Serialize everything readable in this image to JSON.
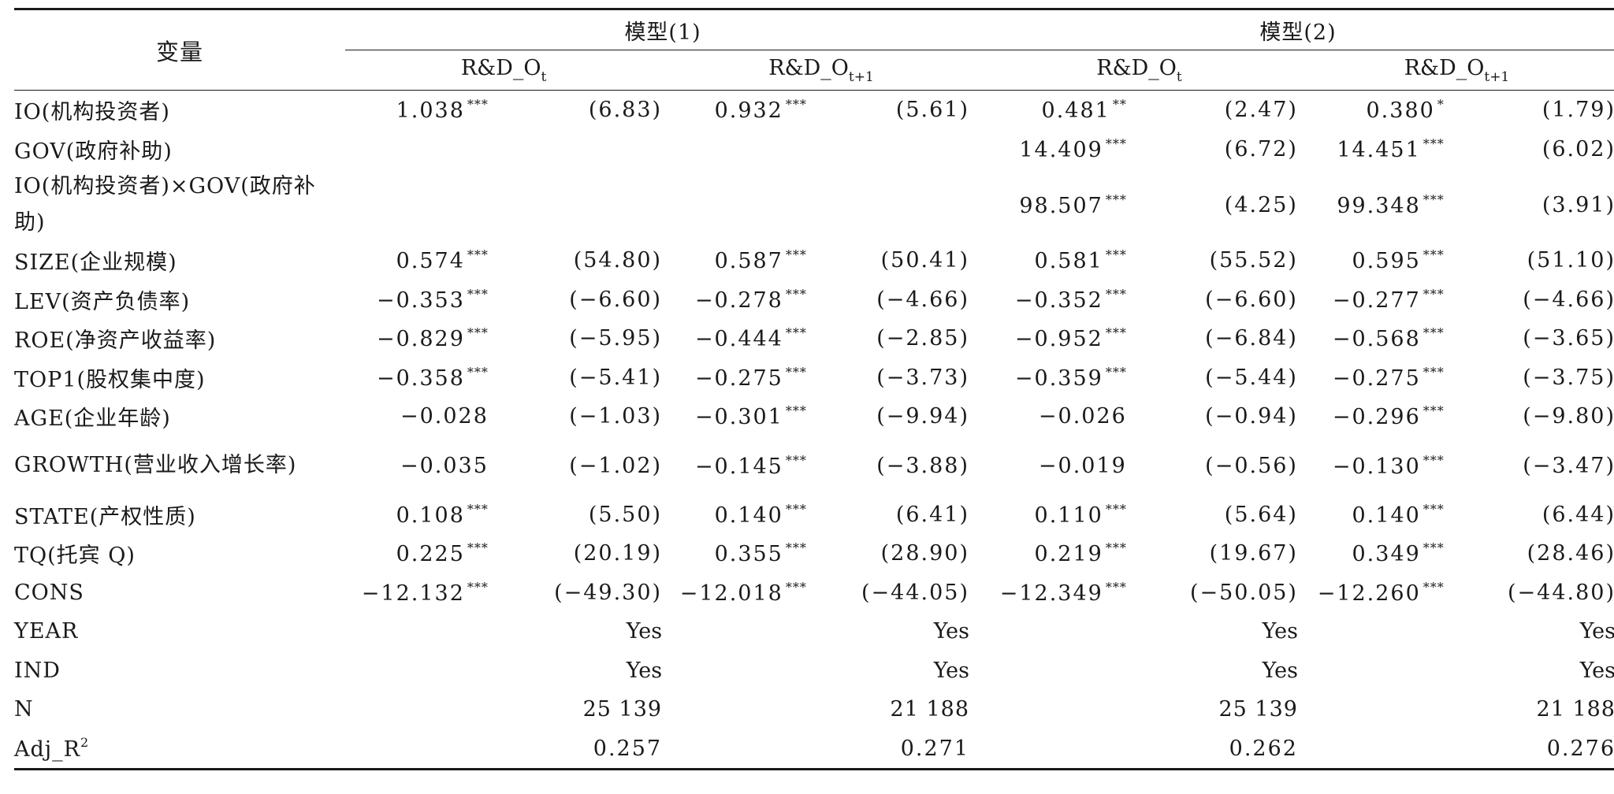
{
  "header": {
    "variable_label": "变量",
    "model1_label": "模型(1)",
    "model2_label": "模型(2)",
    "dep_var_base": "R&D_O",
    "dep_var_sub_t": "t",
    "dep_var_sub_t1": "t+1"
  },
  "rows": [
    {
      "name": "IO(机构投资者)",
      "cells": [
        [
          "1.038",
          "***"
        ],
        [
          "(6.83)",
          ""
        ],
        [
          "0.932",
          "***"
        ],
        [
          "(5.61)",
          ""
        ],
        [
          "0.481",
          "**"
        ],
        [
          "(2.47)",
          ""
        ],
        [
          "0.380",
          "*"
        ],
        [
          "(1.79)",
          ""
        ]
      ]
    },
    {
      "name": "GOV(政府补助)",
      "cells": [
        [
          "",
          ""
        ],
        [
          "",
          ""
        ],
        [
          "",
          ""
        ],
        [
          "",
          ""
        ],
        [
          "14.409",
          "***"
        ],
        [
          "(6.72)",
          ""
        ],
        [
          "14.451",
          "***"
        ],
        [
          "(6.02)",
          ""
        ]
      ]
    },
    {
      "name": "IO(机构投资者)×GOV(政府补助)",
      "cells": [
        [
          "",
          ""
        ],
        [
          "",
          ""
        ],
        [
          "",
          ""
        ],
        [
          "",
          ""
        ],
        [
          "98.507",
          "***"
        ],
        [
          "(4.25)",
          ""
        ],
        [
          "99.348",
          "***"
        ],
        [
          "(3.91)",
          ""
        ]
      ]
    },
    {
      "name": "SIZE(企业规模)",
      "cells": [
        [
          "0.574",
          "***"
        ],
        [
          "(54.80)",
          ""
        ],
        [
          "0.587",
          "***"
        ],
        [
          "(50.41)",
          ""
        ],
        [
          "0.581",
          "***"
        ],
        [
          "(55.52)",
          ""
        ],
        [
          "0.595",
          "***"
        ],
        [
          "(51.10)",
          ""
        ]
      ]
    },
    {
      "name": "LEV(资产负债率)",
      "cells": [
        [
          "−0.353",
          "***"
        ],
        [
          "(−6.60)",
          ""
        ],
        [
          "−0.278",
          "***"
        ],
        [
          "(−4.66)",
          ""
        ],
        [
          "−0.352",
          "***"
        ],
        [
          "(−6.60)",
          ""
        ],
        [
          "−0.277",
          "***"
        ],
        [
          "(−4.66)",
          ""
        ]
      ]
    },
    {
      "name": "ROE(净资产收益率)",
      "cells": [
        [
          "−0.829",
          "***"
        ],
        [
          "(−5.95)",
          ""
        ],
        [
          "−0.444",
          "***"
        ],
        [
          "(−2.85)",
          ""
        ],
        [
          "−0.952",
          "***"
        ],
        [
          "(−6.84)",
          ""
        ],
        [
          "−0.568",
          "***"
        ],
        [
          "(−3.65)",
          ""
        ]
      ]
    },
    {
      "name": "TOP1(股权集中度)",
      "cells": [
        [
          "−0.358",
          "***"
        ],
        [
          "(−5.41)",
          ""
        ],
        [
          "−0.275",
          "***"
        ],
        [
          "(−3.73)",
          ""
        ],
        [
          "−0.359",
          "***"
        ],
        [
          "(−5.44)",
          ""
        ],
        [
          "−0.275",
          "***"
        ],
        [
          "(−3.75)",
          ""
        ]
      ]
    },
    {
      "name": "AGE(企业年龄)",
      "cells": [
        [
          "−0.028",
          ""
        ],
        [
          "(−1.03)",
          ""
        ],
        [
          "−0.301",
          "***"
        ],
        [
          "(−9.94)",
          ""
        ],
        [
          "−0.026",
          ""
        ],
        [
          "(−0.94)",
          ""
        ],
        [
          "−0.296",
          "***"
        ],
        [
          "(−9.80)",
          ""
        ]
      ]
    },
    {
      "name": "GROWTH(营业收入增长率)",
      "cells": [
        [
          "−0.035",
          ""
        ],
        [
          "(−1.02)",
          ""
        ],
        [
          "−0.145",
          "***"
        ],
        [
          "(−3.88)",
          ""
        ],
        [
          "−0.019",
          ""
        ],
        [
          "(−0.56)",
          ""
        ],
        [
          "−0.130",
          "***"
        ],
        [
          "(−3.47)",
          ""
        ]
      ]
    },
    {
      "name": "STATE(产权性质)",
      "cells": [
        [
          "0.108",
          "***"
        ],
        [
          "(5.50)",
          ""
        ],
        [
          "0.140",
          "***"
        ],
        [
          "(6.41)",
          ""
        ],
        [
          "0.110",
          "***"
        ],
        [
          "(5.64)",
          ""
        ],
        [
          "0.140",
          "***"
        ],
        [
          "(6.44)",
          ""
        ]
      ]
    },
    {
      "name": "TQ(托宾 Q)",
      "cells": [
        [
          "0.225",
          "***"
        ],
        [
          "(20.19)",
          ""
        ],
        [
          "0.355",
          "***"
        ],
        [
          "(28.90)",
          ""
        ],
        [
          "0.219",
          "***"
        ],
        [
          "(19.67)",
          ""
        ],
        [
          "0.349",
          "***"
        ],
        [
          "(28.46)",
          ""
        ]
      ]
    },
    {
      "name": "CONS",
      "cells": [
        [
          "−12.132",
          "***"
        ],
        [
          "(−49.30)",
          ""
        ],
        [
          "−12.018",
          "***"
        ],
        [
          "(−44.05)",
          ""
        ],
        [
          "−12.349",
          "***"
        ],
        [
          "(−50.05)",
          ""
        ],
        [
          "−12.260",
          "***"
        ],
        [
          "(−44.80)",
          ""
        ]
      ]
    }
  ],
  "footer": {
    "year": {
      "name": "YEAR",
      "values": [
        "Yes",
        "Yes",
        "Yes",
        "Yes"
      ]
    },
    "ind": {
      "name": "IND",
      "values": [
        "Yes",
        "Yes",
        "Yes",
        "Yes"
      ]
    },
    "n": {
      "name": "N",
      "values": [
        "25 139",
        "21 188",
        "25 139",
        "21 188"
      ]
    },
    "adjr": {
      "name_base": "Adj_R",
      "name_sup": "2",
      "values": [
        "0.257",
        "0.271",
        "0.262",
        "0.276"
      ]
    }
  }
}
